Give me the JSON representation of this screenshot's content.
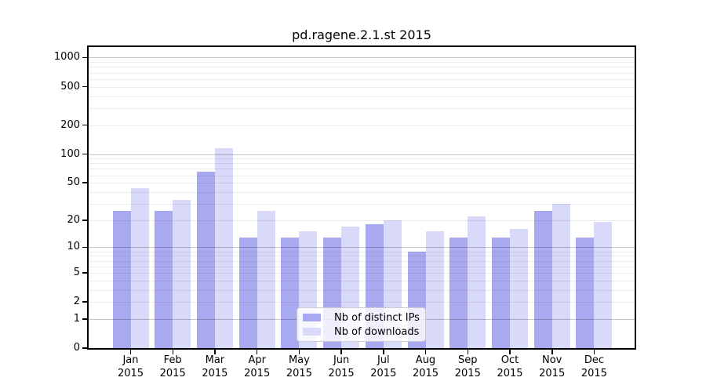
{
  "figure": {
    "background": "#ffffff"
  },
  "chart_data": {
    "type": "bar",
    "title": "pd.ragene.2.1.st 2015",
    "categories": [
      "Jan",
      "Feb",
      "Mar",
      "Apr",
      "May",
      "Jun",
      "Jul",
      "Aug",
      "Sep",
      "Oct",
      "Nov",
      "Dec"
    ],
    "x_tick_second_line": "2015",
    "series": [
      {
        "name": "Nb of distinct IPs",
        "color": "#a9a9f1",
        "values": [
          25,
          25,
          65,
          13,
          13,
          13,
          18,
          9,
          13,
          13,
          25,
          13
        ]
      },
      {
        "name": "Nb of downloads",
        "color": "#d9d9f9",
        "values": [
          44,
          33,
          116,
          25,
          15,
          17,
          20,
          15,
          22,
          16,
          30,
          19
        ]
      }
    ],
    "y_scale": "log10(value+1)",
    "y_ticks": [
      0,
      1,
      2,
      5,
      10,
      20,
      50,
      100,
      200,
      500,
      1000
    ],
    "ylim": [
      0,
      1285
    ],
    "grid": "horizontal",
    "grid_major_values": [
      1,
      10,
      100,
      1000
    ],
    "grid_minor_values": [
      2,
      3,
      4,
      5,
      6,
      7,
      8,
      9,
      20,
      30,
      40,
      50,
      60,
      70,
      80,
      90,
      200,
      300,
      400,
      500,
      600,
      700,
      800,
      900
    ],
    "legend_position": "lower center inside",
    "colors": {
      "spine": "#000000",
      "text": "#000000",
      "grid_major": "rgba(0,0,0,0.22)",
      "grid_minor": "rgba(0,0,0,0.075)",
      "legend_border": "#cccccc",
      "legend_background": "rgba(255,255,255,0.8)"
    }
  }
}
